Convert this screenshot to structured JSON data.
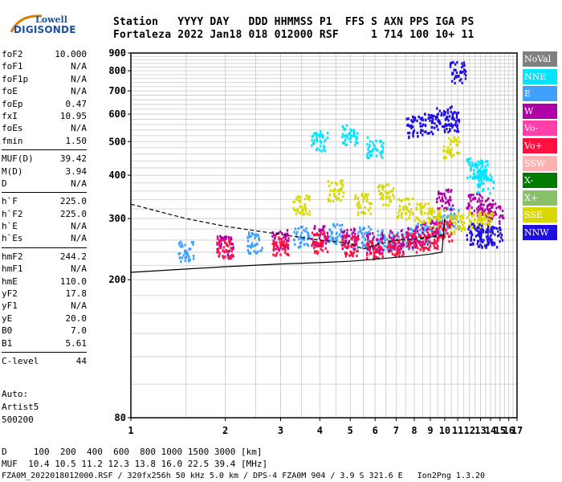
{
  "logo": {
    "line1": "Lowell",
    "line2": "DIGISONDE"
  },
  "header": {
    "line1": "Station   YYYY DAY   DDD HHMMSS P1  FFS S AXN PPS IGA PS",
    "line2": "Fortaleza 2022 Jan18 018 012000 RSF     1 714 100 10+ 11"
  },
  "params": [
    {
      "group": [
        {
          "label": "foF2",
          "value": "10.000"
        },
        {
          "label": "foF1",
          "value": "N/A"
        },
        {
          "label": "foF1p",
          "value": "N/A"
        },
        {
          "label": "foE",
          "value": "N/A"
        },
        {
          "label": "foEp",
          "value": "0.47"
        },
        {
          "label": "fxI",
          "value": "10.95"
        },
        {
          "label": "foEs",
          "value": "N/A"
        },
        {
          "label": "fmin",
          "value": "1.50"
        }
      ]
    },
    {
      "group": [
        {
          "label": "MUF(D)",
          "value": "39.42"
        },
        {
          "label": "M(D)",
          "value": "3.94"
        },
        {
          "label": "D",
          "value": "N/A"
        }
      ]
    },
    {
      "group": [
        {
          "label": "h`F",
          "value": "225.0"
        },
        {
          "label": "h`F2",
          "value": "225.0"
        },
        {
          "label": "h`E",
          "value": "N/A"
        },
        {
          "label": "h`Es",
          "value": "N/A"
        }
      ]
    },
    {
      "group": [
        {
          "label": "hmF2",
          "value": "244.2"
        },
        {
          "label": "hmF1",
          "value": "N/A"
        },
        {
          "label": "hmE",
          "value": "110.0"
        },
        {
          "label": "yF2",
          "value": "17.8"
        },
        {
          "label": "yF1",
          "value": "N/A"
        },
        {
          "label": "yE",
          "value": "20.0"
        },
        {
          "label": "B0",
          "value": "7.0"
        },
        {
          "label": "B1",
          "value": "5.61"
        }
      ]
    },
    {
      "group": [
        {
          "label": "C-level",
          "value": "44"
        }
      ]
    }
  ],
  "auto": {
    "line1": "Auto:",
    "line2": "Artist5",
    "line3": "500200"
  },
  "legend": [
    {
      "label": "NoVal",
      "color": "#808080"
    },
    {
      "label": "NNE",
      "color": "#00e5ff"
    },
    {
      "label": "E",
      "color": "#3fa0ff"
    },
    {
      "label": "W",
      "color": "#b000a8"
    },
    {
      "label": "Vo-",
      "color": "#ff3faa"
    },
    {
      "label": "Vo+",
      "color": "#ff1040"
    },
    {
      "label": "SSW",
      "color": "#ffb0b0"
    },
    {
      "label": "X-",
      "color": "#007a00"
    },
    {
      "label": "X+",
      "color": "#8ac06a"
    },
    {
      "label": "SSE",
      "color": "#d8d800"
    },
    {
      "label": "NNW",
      "color": "#2010e0"
    }
  ],
  "footer": {
    "line1": "D     100  200  400  600  800 1000 1500 3000 [km]",
    "line2": "MUF  10.4 10.5 11.2 12.3 13.8 16.0 22.5 39.4 [MHz]",
    "line3": "FZA0M_2022018012000.RSF / 320fx256h 50 kHz 5.0 km / DPS-4 FZA0M 904 / 3.9 S 321.6 E   Ion2Png 1.3.20"
  },
  "chart_data": {
    "type": "scatter",
    "xlabel": "",
    "ylabel": "",
    "xlim": [
      1,
      17
    ],
    "ylim": [
      80,
      900
    ],
    "x_scale": "log",
    "y_scale": "log",
    "xticks": [
      "1",
      "2",
      "3",
      "4",
      "5",
      "6",
      "7",
      "8",
      "9",
      "10",
      "11",
      "12",
      "13",
      "14",
      "15",
      "16",
      "17"
    ],
    "yticks": [
      "80",
      "200",
      "300",
      "400",
      "500",
      "600",
      "700",
      "800",
      "900"
    ],
    "grid": true,
    "series": [
      {
        "name": "E",
        "color": "#3fa0ff",
        "points": [
          [
            1.5,
            240
          ],
          [
            2.5,
            255
          ],
          [
            3.5,
            265
          ],
          [
            4.5,
            270
          ],
          [
            5.5,
            265
          ],
          [
            6.5,
            258
          ],
          [
            7.5,
            262
          ],
          [
            8.5,
            272
          ],
          [
            9.5,
            285
          ],
          [
            10.5,
            300
          ]
        ]
      },
      {
        "name": "W",
        "color": "#b000a8",
        "points": [
          [
            2,
            250
          ],
          [
            3,
            260
          ],
          [
            4,
            268
          ],
          [
            5,
            262
          ],
          [
            6,
            255
          ],
          [
            7,
            258
          ],
          [
            8,
            265
          ],
          [
            9,
            280
          ],
          [
            10,
            340
          ],
          [
            12.5,
            330
          ],
          [
            13.5,
            320
          ],
          [
            14.5,
            310
          ]
        ]
      },
      {
        "name": "SSE",
        "color": "#d8d800",
        "points": [
          [
            3.5,
            330
          ],
          [
            4.5,
            360
          ],
          [
            5.5,
            330
          ],
          [
            6.5,
            350
          ],
          [
            7.5,
            320
          ],
          [
            8.5,
            310
          ],
          [
            9.5,
            300
          ],
          [
            10.5,
            480
          ],
          [
            11,
            290
          ],
          [
            12.5,
            300
          ],
          [
            13.5,
            290
          ]
        ]
      },
      {
        "name": "NNE",
        "color": "#00e5ff",
        "points": [
          [
            4,
            500
          ],
          [
            5,
            520
          ],
          [
            6,
            480
          ],
          [
            12.5,
            420
          ],
          [
            13,
            410
          ],
          [
            13.5,
            380
          ]
        ]
      },
      {
        "name": "NNW",
        "color": "#2010e0",
        "points": [
          [
            8,
            550
          ],
          [
            9,
            560
          ],
          [
            10,
            590
          ],
          [
            10.5,
            570
          ],
          [
            11,
            790
          ],
          [
            12.5,
            270
          ],
          [
            13.5,
            265
          ],
          [
            14.5,
            265
          ]
        ]
      },
      {
        "name": "Vo+",
        "color": "#ff1040",
        "points": [
          [
            2,
            245
          ],
          [
            3,
            250
          ],
          [
            4,
            255
          ],
          [
            5,
            250
          ],
          [
            6,
            245
          ],
          [
            7,
            250
          ],
          [
            8,
            255
          ],
          [
            9,
            260
          ],
          [
            10,
            275
          ]
        ]
      }
    ],
    "traces": [
      {
        "name": "",
        "color": "#000000",
        "points": [
          [
            1,
            210
          ],
          [
            2,
            218
          ],
          [
            3,
            222
          ],
          [
            4,
            224
          ],
          [
            5,
            226
          ],
          [
            6,
            229
          ],
          [
            7,
            232
          ],
          [
            8,
            234
          ],
          [
            9,
            237
          ],
          [
            9.8,
            240
          ],
          [
            10,
            300
          ]
        ]
      },
      {
        "name": "",
        "color": "#000000",
        "points": [
          [
            1,
            330
          ],
          [
            1.5,
            300
          ],
          [
            2,
            285
          ],
          [
            3,
            270
          ],
          [
            4,
            260
          ],
          [
            5,
            255
          ],
          [
            5.5,
            245
          ],
          [
            6,
            252
          ],
          [
            7,
            260
          ],
          [
            8,
            262
          ],
          [
            9,
            265
          ],
          [
            10,
            270
          ]
        ]
      }
    ]
  }
}
